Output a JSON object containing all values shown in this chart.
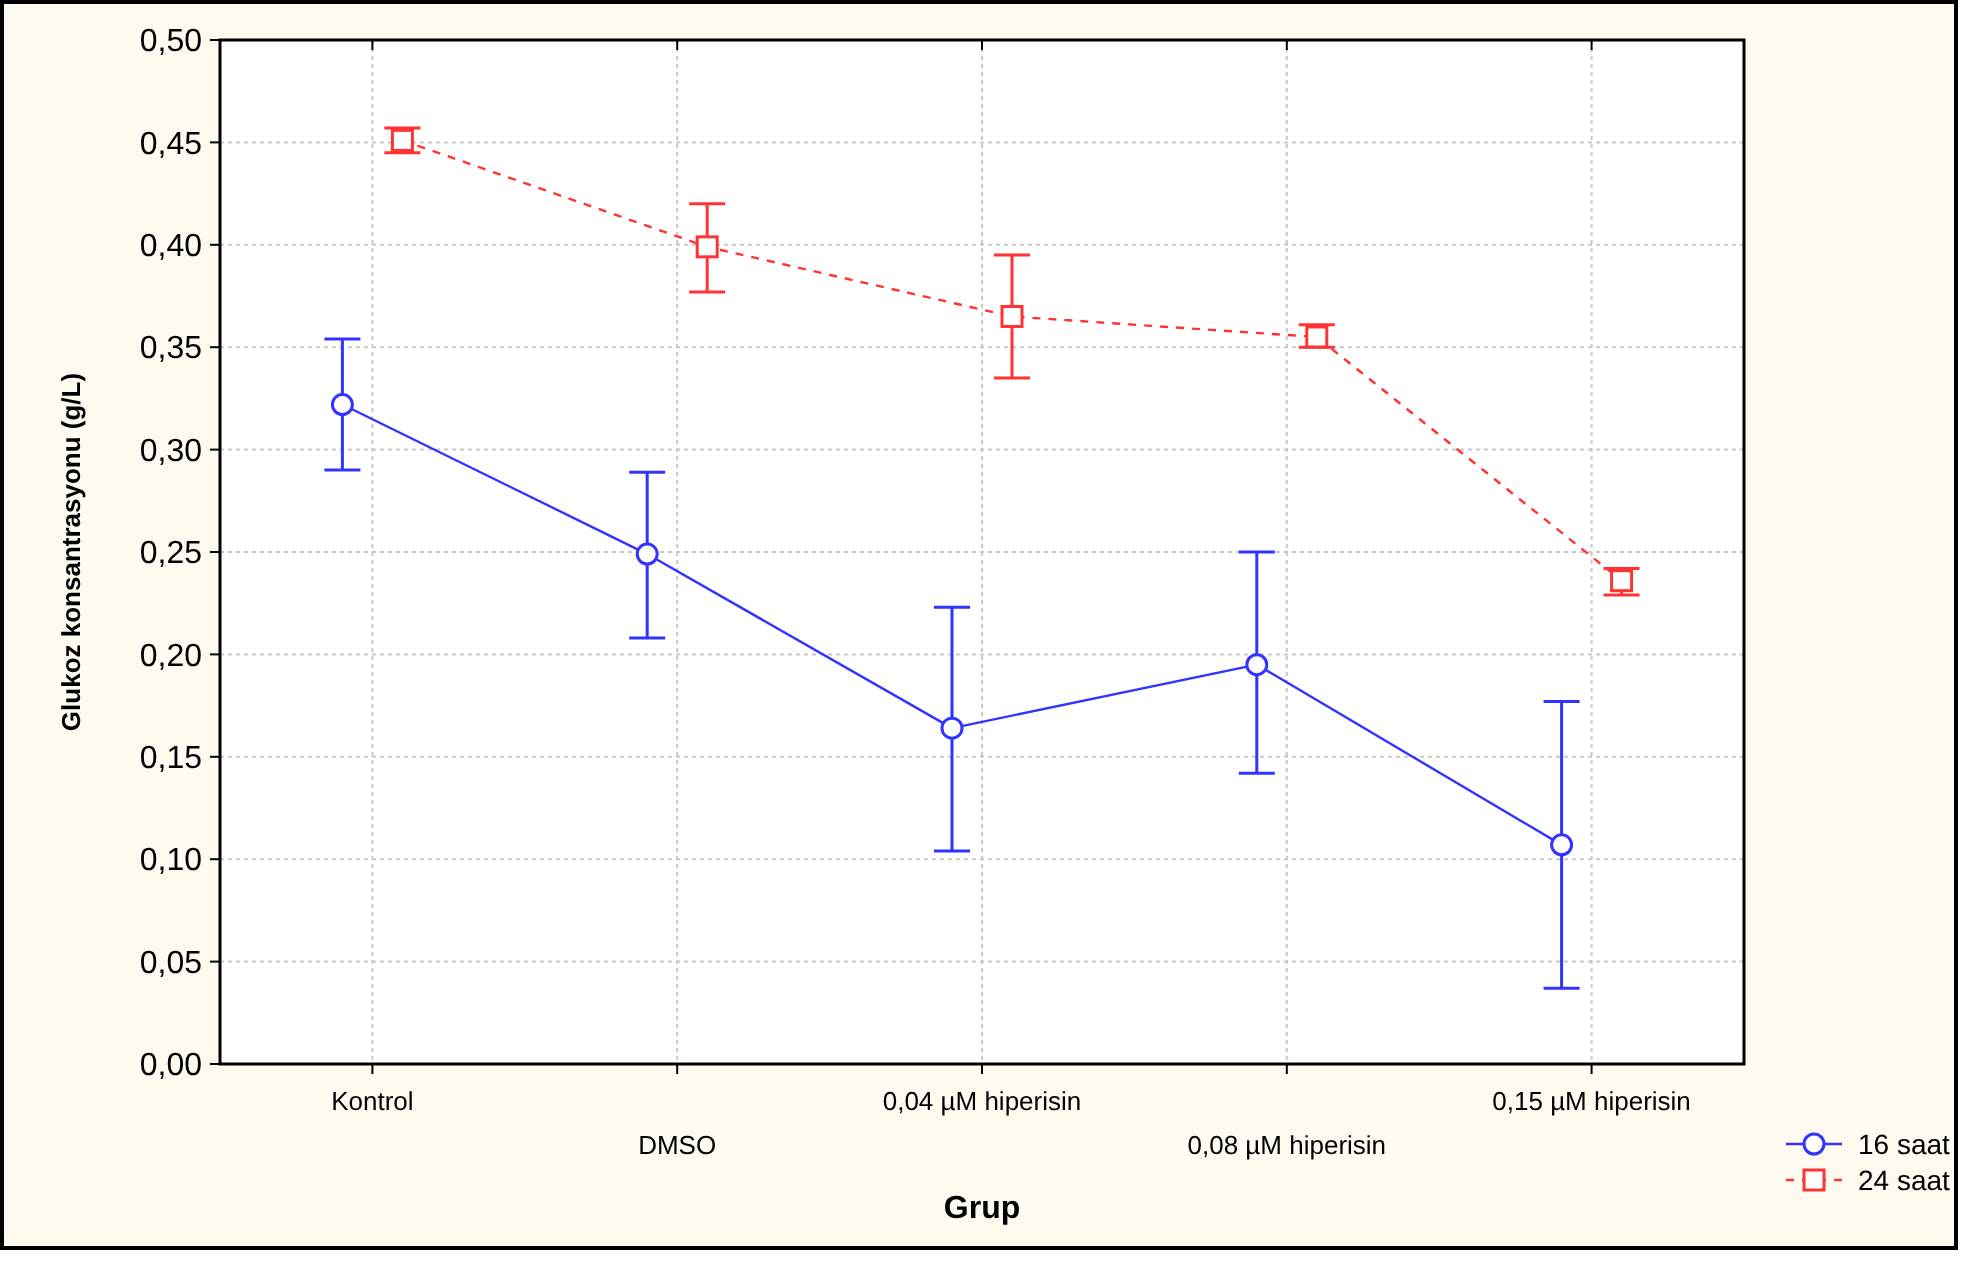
{
  "chart_data": {
    "type": "line",
    "xlabel": "Grup",
    "ylabel": "Glukoz konsantrasyonu (g/L)",
    "categories": [
      "Kontrol",
      "DMSO",
      "0,04 µM hiperisin",
      "0,08 µM hiperisin",
      "0,15 µM hiperisin"
    ],
    "ylim": [
      0,
      0.5
    ],
    "yticks": [
      {
        "value": 0,
        "label": "0,00"
      },
      {
        "value": 0.05,
        "label": "0,05"
      },
      {
        "value": 0.1,
        "label": "0,10"
      },
      {
        "value": 0.15,
        "label": "0,15"
      },
      {
        "value": 0.2,
        "label": "0,20"
      },
      {
        "value": 0.25,
        "label": "0,25"
      },
      {
        "value": 0.3,
        "label": "0,30"
      },
      {
        "value": 0.35,
        "label": "0,35"
      },
      {
        "value": 0.4,
        "label": "0,40"
      },
      {
        "value": 0.45,
        "label": "0,45"
      },
      {
        "value": 0.5,
        "label": "0,50"
      }
    ],
    "grid": true,
    "legend": "bottom right",
    "series": [
      {
        "name": "16 saat",
        "color": "#3333ff",
        "marker": "circle",
        "line_style": "solid",
        "values": [
          0.322,
          0.249,
          0.164,
          0.195,
          0.107
        ],
        "errors": [
          [
            0.29,
            0.354
          ],
          [
            0.208,
            0.289
          ],
          [
            0.104,
            0.223
          ],
          [
            0.142,
            0.25
          ],
          [
            0.037,
            0.177
          ]
        ]
      },
      {
        "name": "24 saat",
        "color": "#ff3333",
        "marker": "square",
        "line_style": "dashed",
        "values": [
          0.451,
          0.399,
          0.365,
          0.355,
          0.236
        ],
        "errors": [
          [
            0.445,
            0.457
          ],
          [
            0.377,
            0.42
          ],
          [
            0.335,
            0.395
          ],
          [
            0.35,
            0.361
          ],
          [
            0.229,
            0.242
          ]
        ]
      }
    ]
  }
}
